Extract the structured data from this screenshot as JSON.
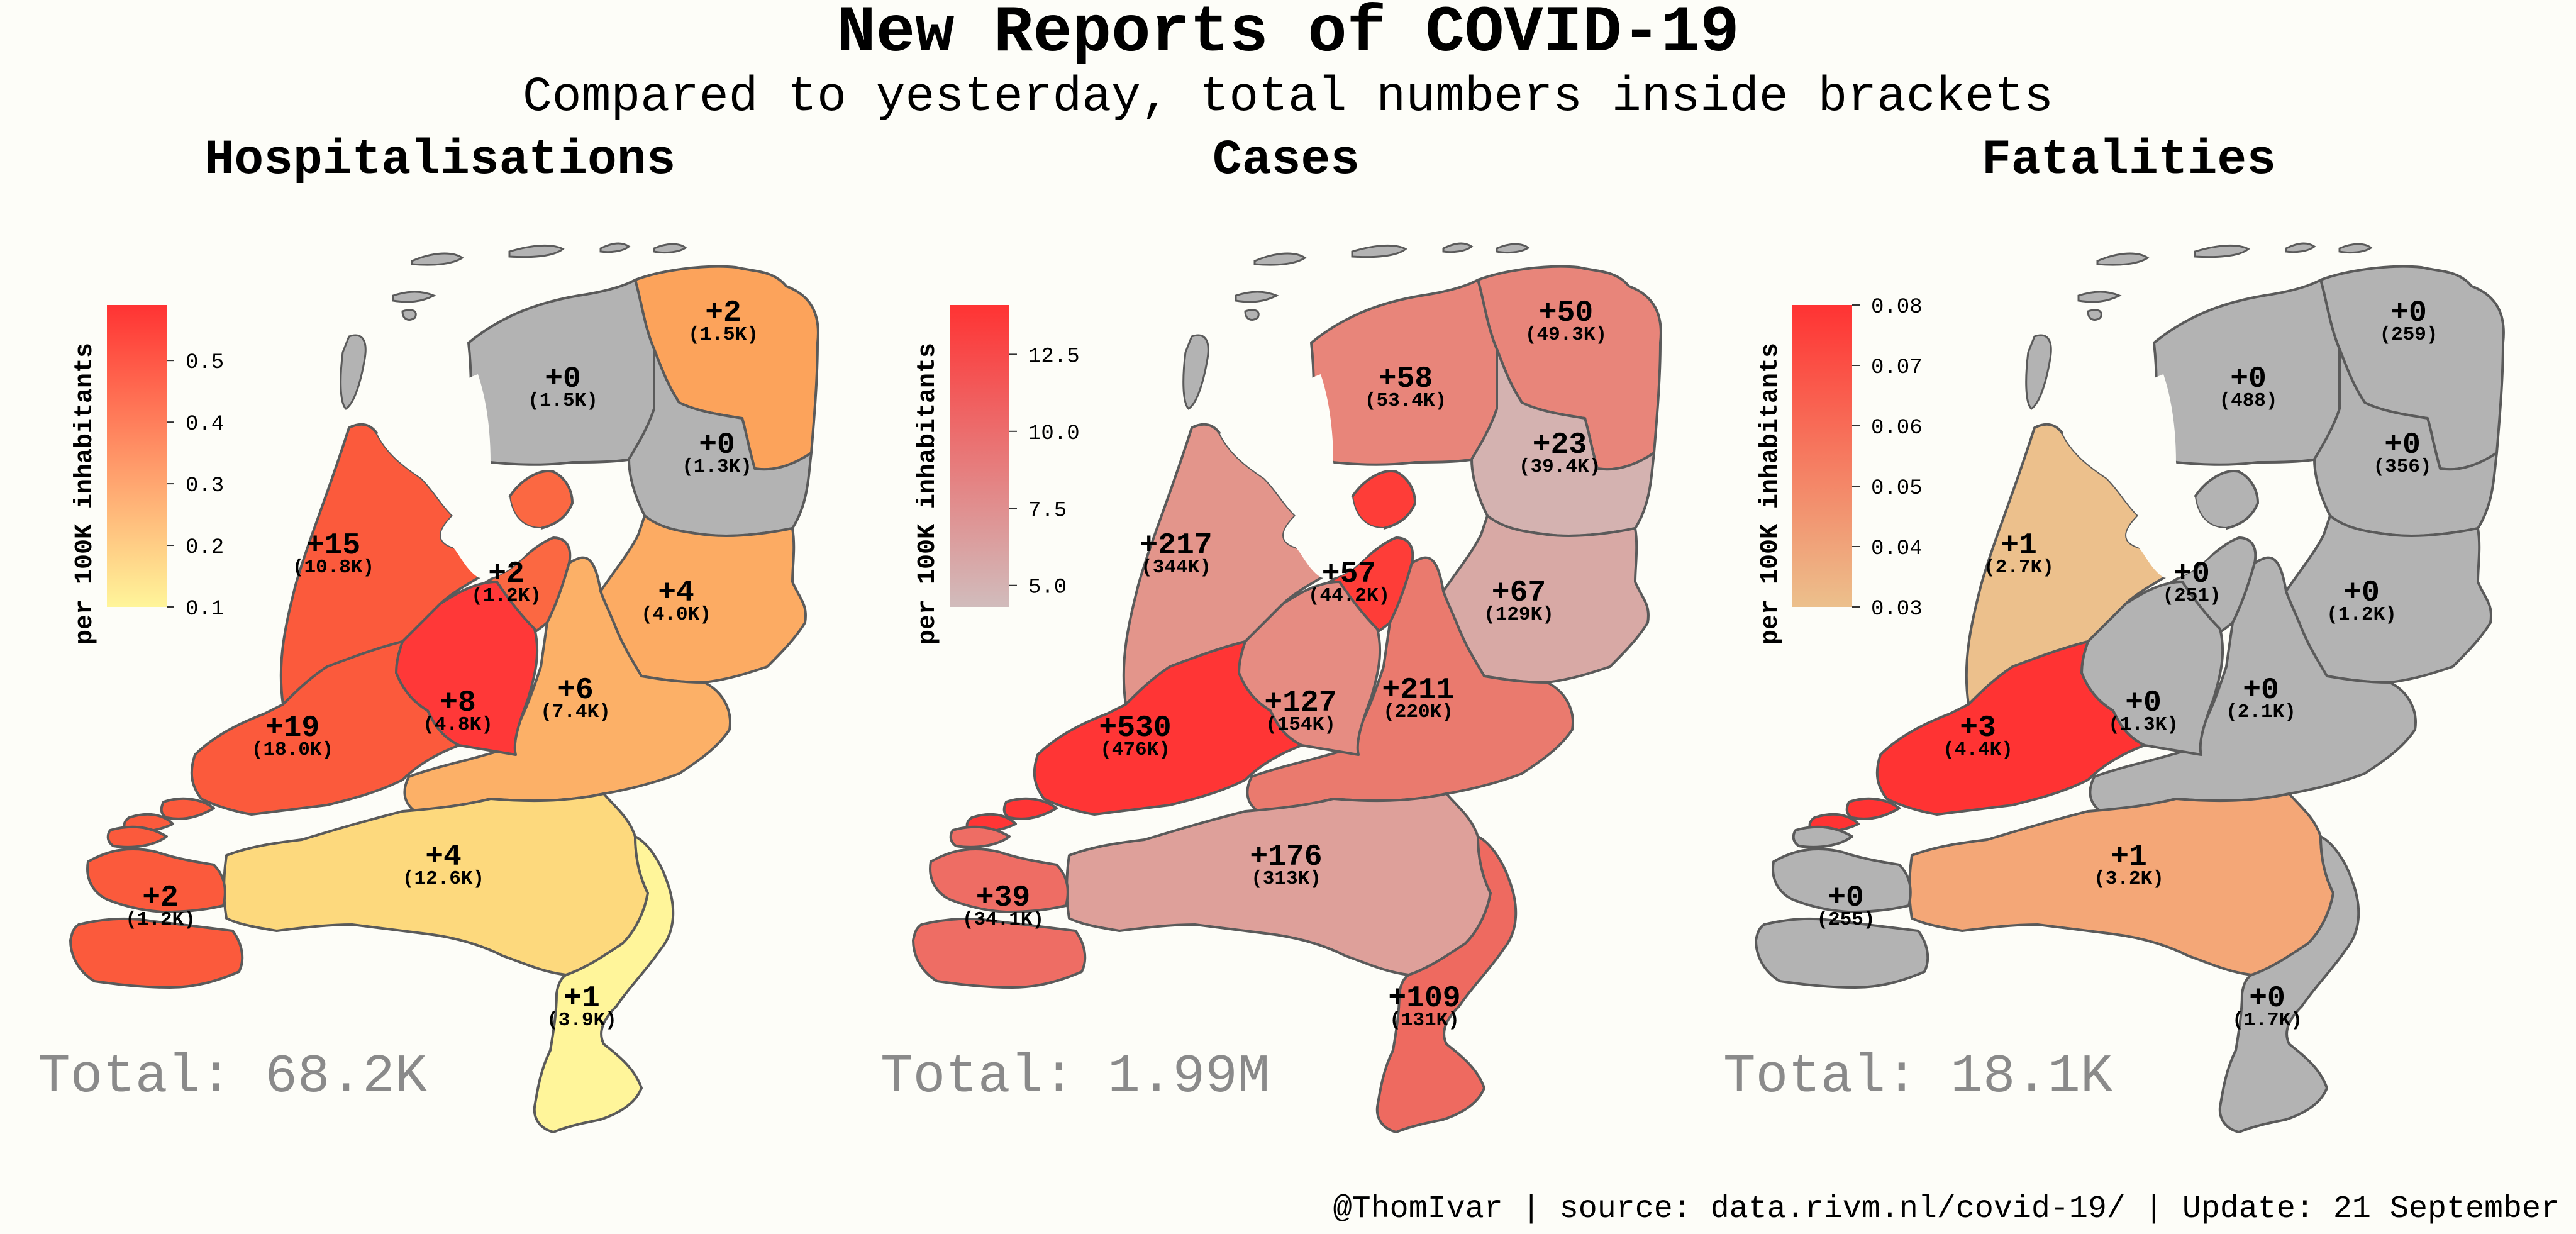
{
  "title": "New Reports of COVID-19",
  "subtitle": "Compared to yesterday, total numbers inside brackets",
  "footer": "@ThomIvar | source: data.rivm.nl/covid-19/ | Update: 21 September",
  "colors": {
    "background": "#fdfdf8",
    "no_change": "#b3b3b3",
    "border": "#5a5a5a",
    "total_text": "#8a8a8a"
  },
  "panels": [
    {
      "title": "Hospitalisations",
      "total": "Total: 68.2K",
      "colorbar": {
        "title": "per 100K inhabitants",
        "ticks": [
          "0.5",
          "0.4",
          "0.3",
          "0.2",
          "0.1"
        ],
        "tick_values": [
          0.5,
          0.4,
          0.3,
          0.2,
          0.1
        ],
        "range": [
          0.1,
          0.59
        ],
        "color_low": "#fff59a",
        "color_high": "#ff3333"
      },
      "regions": [
        {
          "id": "groningen",
          "label": "+2",
          "total": "(1.5K)",
          "color": "#fca35b"
        },
        {
          "id": "friesland",
          "label": "+0",
          "total": "(1.5K)",
          "color": "#b3b3b3"
        },
        {
          "id": "drenthe",
          "label": "+0",
          "total": "(1.3K)",
          "color": "#b3b3b3"
        },
        {
          "id": "noord-holland",
          "label": "+15",
          "total": "(10.8K)",
          "color": "#fb5a3c"
        },
        {
          "id": "flevoland",
          "label": "+2",
          "total": "(1.2K)",
          "color": "#fb6842"
        },
        {
          "id": "overijssel",
          "label": "+4",
          "total": "(4.0K)",
          "color": "#fcab63"
        },
        {
          "id": "gelderland",
          "label": "+6",
          "total": "(7.4K)",
          "color": "#fcb067"
        },
        {
          "id": "utrecht",
          "label": "+8",
          "total": "(4.8K)",
          "color": "#ff3838"
        },
        {
          "id": "zuid-holland",
          "label": "+19",
          "total": "(18.0K)",
          "color": "#fb5a3c"
        },
        {
          "id": "noord-brabant",
          "label": "+4",
          "total": "(12.6K)",
          "color": "#fdd97d"
        },
        {
          "id": "zeeland",
          "label": "+2",
          "total": "(1.2K)",
          "color": "#fb5a3c"
        },
        {
          "id": "limburg",
          "label": "+1",
          "total": "(3.9K)",
          "color": "#fff59a"
        }
      ]
    },
    {
      "title": "Cases",
      "total": "Total: 1.99M",
      "colorbar": {
        "title": "per 100K inhabitants",
        "ticks": [
          "12.5",
          "10.0",
          "7.5",
          "5.0"
        ],
        "tick_values": [
          12.5,
          10.0,
          7.5,
          5.0
        ],
        "range": [
          4.3,
          14.1
        ],
        "color_low": "#d1bcbc",
        "color_high": "#ff3333"
      },
      "regions": [
        {
          "id": "groningen",
          "label": "+50",
          "total": "(49.3K)",
          "color": "#e8857a"
        },
        {
          "id": "friesland",
          "label": "+58",
          "total": "(53.4K)",
          "color": "#e8857a"
        },
        {
          "id": "drenthe",
          "label": "+23",
          "total": "(39.4K)",
          "color": "#d4b2b0"
        },
        {
          "id": "noord-holland",
          "label": "+217",
          "total": "(344K)",
          "color": "#e3958b"
        },
        {
          "id": "flevoland",
          "label": "+57",
          "total": "(44.2K)",
          "color": "#fe3d38"
        },
        {
          "id": "overijssel",
          "label": "+67",
          "total": "(129K)",
          "color": "#d8a9a5"
        },
        {
          "id": "gelderland",
          "label": "+211",
          "total": "(220K)",
          "color": "#ea7a6e"
        },
        {
          "id": "utrecht",
          "label": "+127",
          "total": "(154K)",
          "color": "#e68c82"
        },
        {
          "id": "zuid-holland",
          "label": "+530",
          "total": "(476K)",
          "color": "#ff3535"
        },
        {
          "id": "noord-brabant",
          "label": "+176",
          "total": "(313K)",
          "color": "#dea09a"
        },
        {
          "id": "zeeland",
          "label": "+39",
          "total": "(34.1K)",
          "color": "#ee6d64"
        },
        {
          "id": "limburg",
          "label": "+109",
          "total": "(131K)",
          "color": "#ee6a60"
        }
      ]
    },
    {
      "title": "Fatalities",
      "total": "Total: 18.1K",
      "colorbar": {
        "title": "per 100K inhabitants",
        "ticks": [
          "0.08",
          "0.07",
          "0.06",
          "0.05",
          "0.04",
          "0.03"
        ],
        "tick_values": [
          0.08,
          0.07,
          0.06,
          0.05,
          0.04,
          0.03
        ],
        "range": [
          0.03,
          0.08
        ],
        "color_low": "#ecc08c",
        "color_high": "#ff3333"
      },
      "regions": [
        {
          "id": "groningen",
          "label": "+0",
          "total": "(259)",
          "color": "#b3b3b3"
        },
        {
          "id": "friesland",
          "label": "+0",
          "total": "(488)",
          "color": "#b3b3b3"
        },
        {
          "id": "drenthe",
          "label": "+0",
          "total": "(356)",
          "color": "#b3b3b3"
        },
        {
          "id": "noord-holland",
          "label": "+1",
          "total": "(2.7K)",
          "color": "#ecc08c"
        },
        {
          "id": "flevoland",
          "label": "+0",
          "total": "(251)",
          "color": "#b3b3b3"
        },
        {
          "id": "overijssel",
          "label": "+0",
          "total": "(1.2K)",
          "color": "#b3b3b3"
        },
        {
          "id": "gelderland",
          "label": "+0",
          "total": "(2.1K)",
          "color": "#b3b3b3"
        },
        {
          "id": "utrecht",
          "label": "+0",
          "total": "(1.3K)",
          "color": "#b3b3b3"
        },
        {
          "id": "zuid-holland",
          "label": "+3",
          "total": "(4.4K)",
          "color": "#ff3333"
        },
        {
          "id": "noord-brabant",
          "label": "+1",
          "total": "(3.2K)",
          "color": "#f4a777"
        },
        {
          "id": "zeeland",
          "label": "+0",
          "total": "(255)",
          "color": "#b3b3b3"
        },
        {
          "id": "limburg",
          "label": "+0",
          "total": "(1.7K)",
          "color": "#b3b3b3"
        }
      ]
    }
  ]
}
